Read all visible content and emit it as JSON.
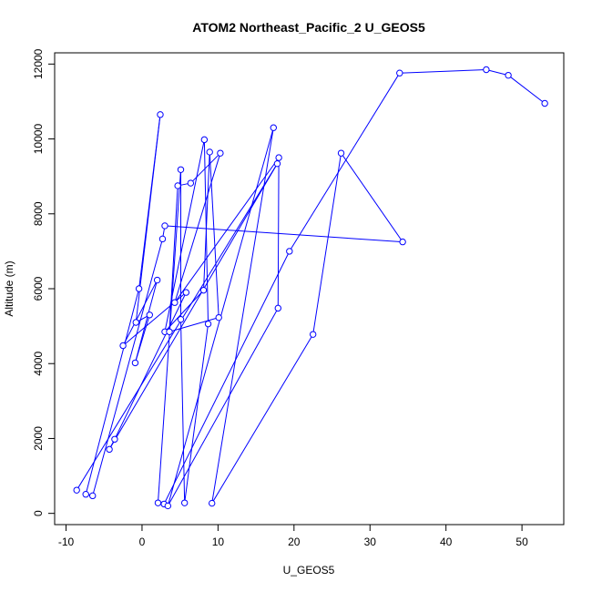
{
  "chart_data": {
    "type": "scatter",
    "title": "ATOM2 Northeast_Pacific_2 U_GEOS5",
    "xlabel": "U_GEOS5",
    "ylabel": "Altitude (m)",
    "xlim": [
      -11.5,
      55.5
    ],
    "ylim": [
      -300,
      12300
    ],
    "x_ticks": [
      -10,
      0,
      10,
      20,
      30,
      40,
      50
    ],
    "y_ticks": [
      0,
      2000,
      4000,
      6000,
      8000,
      10000,
      12000
    ],
    "x_tick_labels": [
      "-10",
      "0",
      "10",
      "20",
      "30",
      "40",
      "50"
    ],
    "y_tick_labels": [
      "0",
      "2000",
      "4000",
      "6000",
      "8000",
      "10000",
      "12000"
    ],
    "grid": false,
    "legend": "none",
    "line_color": "#0000ff",
    "marker": "open-circle",
    "series": [
      {
        "points": [
          {
            "x": 53.0,
            "y": 10950
          },
          {
            "x": 48.2,
            "y": 11700
          },
          {
            "x": 45.3,
            "y": 11850
          },
          {
            "x": 33.9,
            "y": 11760
          },
          {
            "x": 19.4,
            "y": 7000
          },
          {
            "x": 2.9,
            "y": 250
          },
          {
            "x": 2.1,
            "y": 280
          },
          {
            "x": 5.1,
            "y": 9180
          },
          {
            "x": 5.1,
            "y": 5180
          },
          {
            "x": 5.6,
            "y": 280
          },
          {
            "x": 8.7,
            "y": 5060
          },
          {
            "x": 8.2,
            "y": 9980
          },
          {
            "x": 3.0,
            "y": 4850
          },
          {
            "x": 8.1,
            "y": 5960
          },
          {
            "x": 8.9,
            "y": 9650
          },
          {
            "x": 10.1,
            "y": 5230
          },
          {
            "x": 3.6,
            "y": 4850
          },
          {
            "x": 4.7,
            "y": 8750
          },
          {
            "x": 6.4,
            "y": 8820
          },
          {
            "x": 10.3,
            "y": 9620
          },
          {
            "x": 4.3,
            "y": 5630
          },
          {
            "x": 18.0,
            "y": 9500
          },
          {
            "x": 17.9,
            "y": 5480
          },
          {
            "x": 3.4,
            "y": 200
          },
          {
            "x": 17.3,
            "y": 10300
          },
          {
            "x": 9.2,
            "y": 270
          },
          {
            "x": 22.5,
            "y": 4780
          },
          {
            "x": 26.2,
            "y": 9620
          },
          {
            "x": 34.3,
            "y": 7250
          },
          {
            "x": 3.0,
            "y": 7680
          },
          {
            "x": 2.7,
            "y": 7330
          },
          {
            "x": -6.5,
            "y": 470
          },
          {
            "x": -7.4,
            "y": 510
          },
          {
            "x": -0.4,
            "y": 6000
          },
          {
            "x": 2.4,
            "y": 10650
          },
          {
            "x": -0.8,
            "y": 5100
          },
          {
            "x": 1.0,
            "y": 5300
          },
          {
            "x": -0.9,
            "y": 4020
          },
          {
            "x": 2.0,
            "y": 6230
          },
          {
            "x": -2.5,
            "y": 4480
          },
          {
            "x": 5.8,
            "y": 5900
          },
          {
            "x": -3.6,
            "y": 1980
          },
          {
            "x": -4.3,
            "y": 1710
          },
          {
            "x": 17.8,
            "y": 9340
          },
          {
            "x": -8.6,
            "y": 620
          }
        ]
      }
    ]
  }
}
